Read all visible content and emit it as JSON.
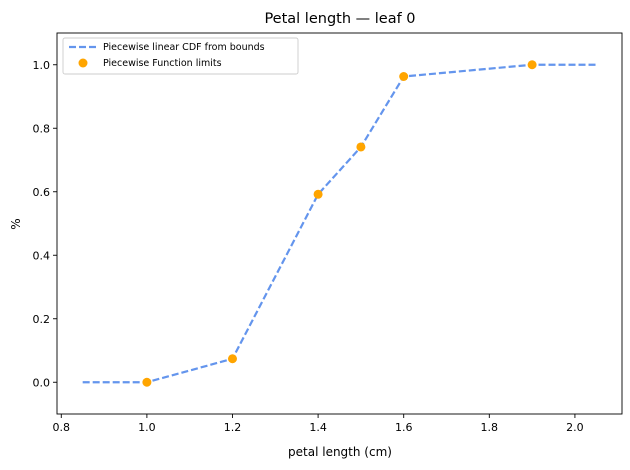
{
  "chart_data": {
    "type": "line",
    "title": "Petal length — leaf 0",
    "xlabel": "petal length (cm)",
    "ylabel": "%",
    "xlim": [
      0.79,
      2.11
    ],
    "ylim": [
      -0.1,
      1.1
    ],
    "xticks": [
      0.8,
      1.0,
      1.2,
      1.4,
      1.6,
      1.8,
      2.0
    ],
    "xtick_labels": [
      "0.8",
      "1.0",
      "1.2",
      "1.4",
      "1.6",
      "1.8",
      "2.0"
    ],
    "yticks": [
      0.0,
      0.2,
      0.4,
      0.6,
      0.8,
      1.0
    ],
    "ytick_labels": [
      "0.0",
      "0.2",
      "0.4",
      "0.6",
      "0.8",
      "1.0"
    ],
    "grid": false,
    "legend_position": "top-left",
    "series": [
      {
        "name": "Piecewise linear CDF from bounds",
        "kind": "line",
        "style": "dashed",
        "color": "#6495ED",
        "x": [
          0.85,
          1.0,
          1.2,
          1.4,
          1.5,
          1.6,
          1.9,
          2.05
        ],
        "y": [
          0.0,
          0.0,
          0.074,
          0.592,
          0.741,
          0.963,
          1.0,
          1.0
        ]
      },
      {
        "name": "Piecewise Function limits",
        "kind": "scatter",
        "color": "#FFA500",
        "x": [
          1.0,
          1.2,
          1.4,
          1.5,
          1.6,
          1.9
        ],
        "y": [
          0.0,
          0.074,
          0.592,
          0.741,
          0.963,
          1.0
        ]
      }
    ]
  }
}
